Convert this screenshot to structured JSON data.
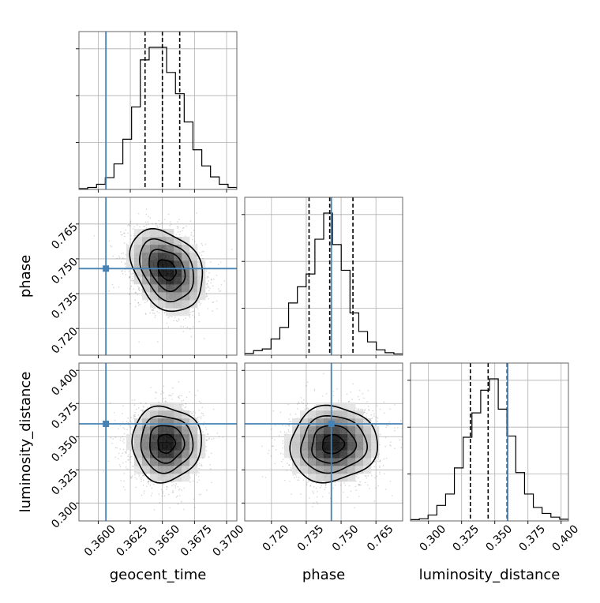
{
  "chart_data": {
    "type": "corner",
    "parameters": [
      "geocent_time",
      "phase",
      "luminosity_distance"
    ],
    "axis_labels": {
      "geocent_time": "geocent_time",
      "phase": "phase",
      "luminosity_distance": "luminosity_distance"
    },
    "ranges": {
      "geocent_time": [
        0.3585,
        0.3708
      ],
      "phase": [
        0.7085,
        0.7765
      ],
      "luminosity_distance": [
        0.2865,
        0.4055
      ]
    },
    "ticks": {
      "geocent_time": [
        0.36,
        0.3625,
        0.365,
        0.3675,
        0.37
      ],
      "phase": [
        0.72,
        0.735,
        0.75,
        0.765
      ],
      "luminosity_distance": [
        0.3,
        0.325,
        0.35,
        0.375,
        0.4
      ]
    },
    "tick_labels": {
      "geocent_time": [
        "0.3600",
        "0.3625",
        "0.3650",
        "0.3675",
        "0.3700"
      ],
      "phase": [
        "0.720",
        "0.735",
        "0.750",
        "0.765"
      ],
      "luminosity_distance": [
        "0.300",
        "0.325",
        "0.350",
        "0.375",
        "0.400"
      ]
    },
    "truths": {
      "geocent_time": 0.3606,
      "phase": 0.7458,
      "luminosity_distance": 0.3597
    },
    "quantiles": {
      "geocent_time": [
        0.36365,
        0.365,
        0.36635
      ],
      "phase": [
        0.7362,
        0.7451,
        0.7551
      ],
      "luminosity_distance": [
        0.3316,
        0.345,
        0.3593
      ]
    },
    "histograms": {
      "geocent_time": {
        "edges": [
          0.3585,
          0.35918,
          0.35987,
          0.36055,
          0.36123,
          0.36192,
          0.3626,
          0.36328,
          0.36397,
          0.36465,
          0.36533,
          0.36602,
          0.3667,
          0.36738,
          0.36807,
          0.36875,
          0.36943,
          0.37012,
          0.3708
        ],
        "counts": [
          0.2,
          0.5,
          1.3,
          3,
          6.5,
          12.8,
          21,
          33,
          36.2,
          36.2,
          29.8,
          24.4,
          17.2,
          10.1,
          6,
          3.2,
          1.3,
          0.5
        ]
      },
      "phase": {
        "edges": [
          0.7085,
          0.71228,
          0.71606,
          0.71983,
          0.72361,
          0.72739,
          0.73117,
          0.73494,
          0.73872,
          0.7425,
          0.74628,
          0.75006,
          0.75383,
          0.75761,
          0.76139,
          0.76517,
          0.76894,
          0.77272,
          0.7765
        ],
        "counts": [
          0.4,
          1.1,
          1.5,
          3.9,
          6.7,
          12.6,
          16.5,
          19.6,
          28,
          34.3,
          26.7,
          20.5,
          10.2,
          5.7,
          3.2,
          1.3,
          0.6,
          0.3
        ]
      },
      "luminosity_distance": {
        "edges": [
          0.2865,
          0.29311,
          0.29972,
          0.30633,
          0.31294,
          0.31956,
          0.32617,
          0.33278,
          0.33939,
          0.346,
          0.35261,
          0.35922,
          0.36583,
          0.37244,
          0.37906,
          0.38567,
          0.39228,
          0.39889,
          0.4055
        ],
        "counts": [
          0.3,
          0.5,
          1.4,
          3.7,
          6.4,
          12.6,
          19.9,
          25.7,
          31.1,
          33.8,
          26.6,
          20.2,
          11.5,
          6.4,
          3.2,
          1.8,
          0.9,
          0.4
        ]
      }
    },
    "joint_densities": [
      {
        "x": "geocent_time",
        "y": "phase",
        "center": [
          0.36535,
          0.7453
        ],
        "sigma": [
          0.0014,
          0.0088
        ],
        "rho": -0.3
      },
      {
        "x": "geocent_time",
        "y": "luminosity_distance",
        "center": [
          0.3653,
          0.3448
        ],
        "sigma": [
          0.00135,
          0.0141
        ],
        "rho": 0.0
      },
      {
        "x": "phase",
        "y": "luminosity_distance",
        "center": [
          0.7465,
          0.3443
        ],
        "sigma": [
          0.0094,
          0.0142
        ],
        "rho": 0.05
      }
    ],
    "contour_sigma_levels": [
      0.5,
      1.0,
      1.5,
      2.0
    ],
    "colors": {
      "truth": "#4682b4",
      "histogram": "#000000",
      "quantile": "#000000",
      "contour": "#000000",
      "grid": "#b0b0b0",
      "scatter": "#000000"
    },
    "grid": true
  }
}
